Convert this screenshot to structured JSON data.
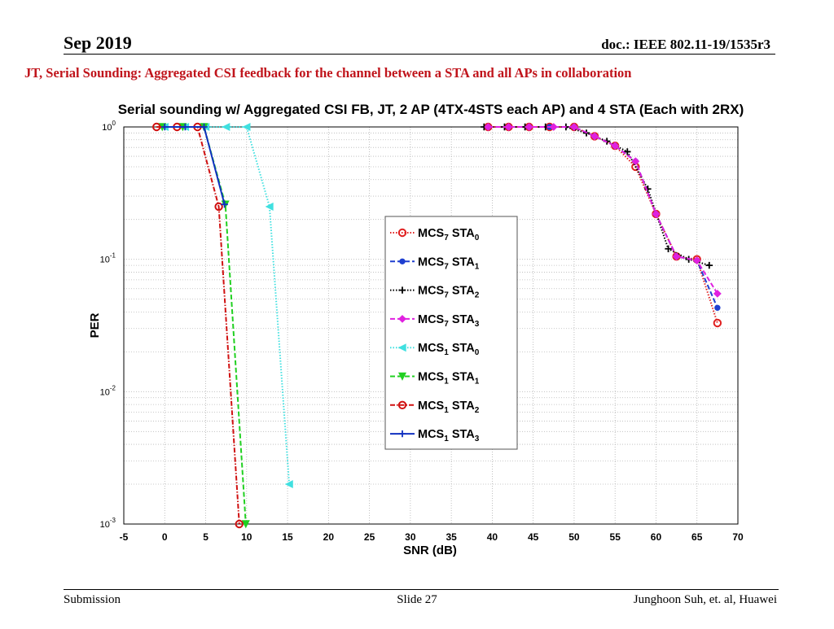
{
  "header": {
    "date": "Sep 2019",
    "doc": "doc.: IEEE 802.11-19/1535r3"
  },
  "slide_title": "JT, Serial Sounding: Aggregated CSI feedback for the channel  between a STA and all APs in collaboration",
  "footer": {
    "left": "Submission",
    "center": "Slide 27",
    "right": "Junghoon Suh, et. al, Huawei"
  },
  "chart_data": {
    "type": "line",
    "title": "Serial sounding w/ Aggregated CSI FB, JT, 2 AP (4TX-4STS each AP) and 4 STA (Each with 2RX)",
    "xlabel": "SNR (dB)",
    "ylabel": "PER",
    "xlim": [
      -5,
      70
    ],
    "ylim": [
      0.001,
      1
    ],
    "yscale": "log",
    "grid": true,
    "legend_position": "center-right",
    "x_ticks": [
      "-5",
      "0",
      "5",
      "10",
      "15",
      "20",
      "25",
      "30",
      "35",
      "40",
      "45",
      "50",
      "55",
      "60",
      "65",
      "70"
    ],
    "y_ticks": [
      {
        "base": "10",
        "exp": "0",
        "value": 1
      },
      {
        "base": "10",
        "exp": "-1",
        "value": 0.1
      },
      {
        "base": "10",
        "exp": "-2",
        "value": 0.01
      },
      {
        "base": "10",
        "exp": "-3",
        "value": 0.001
      }
    ],
    "series": [
      {
        "name": "MCS7 STA0",
        "label_main": "MCS",
        "label_sub1": "7",
        "label_mid": " STA",
        "label_sub2": "0",
        "color": "#e02020",
        "dash": "1.5,2",
        "marker": "circle",
        "x": [
          39.5,
          42,
          44.5,
          47,
          50,
          52.5,
          55,
          57.5,
          60,
          62.5,
          65,
          67.5
        ],
        "y": [
          1.0,
          1.0,
          1.0,
          1.0,
          1.0,
          0.85,
          0.72,
          0.5,
          0.22,
          0.105,
          0.1,
          0.033
        ]
      },
      {
        "name": "MCS7 STA1",
        "label_main": "MCS",
        "label_sub1": "7",
        "label_mid": " STA",
        "label_sub2": "1",
        "color": "#1f3fd0",
        "dash": "6,3",
        "marker": "dot",
        "x": [
          39.5,
          42,
          44.5,
          47,
          50,
          52.5,
          55,
          57.5,
          60,
          62.5,
          65,
          67.5
        ],
        "y": [
          1.0,
          1.0,
          1.0,
          1.0,
          1.0,
          0.85,
          0.72,
          0.55,
          0.22,
          0.105,
          0.098,
          0.043
        ]
      },
      {
        "name": "MCS7 STA2",
        "label_main": "MCS",
        "label_sub1": "7",
        "label_mid": " STA",
        "label_sub2": "2",
        "color": "#000000",
        "dash": "1.5,2",
        "marker": "plus",
        "x": [
          39,
          41.5,
          44,
          46.5,
          49,
          51.5,
          54,
          56.5,
          59,
          61.5,
          64,
          66.5
        ],
        "y": [
          1.0,
          1.0,
          1.0,
          1.0,
          1.0,
          0.9,
          0.78,
          0.65,
          0.34,
          0.12,
          0.1,
          0.09
        ]
      },
      {
        "name": "MCS7 STA3",
        "label_main": "MCS",
        "label_sub1": "7",
        "label_mid": " STA",
        "label_sub2": "3",
        "color": "#e020e0",
        "dash": "6,3",
        "marker": "diamond",
        "x": [
          39.5,
          42,
          44.5,
          47.5,
          50,
          52.5,
          55,
          57.5,
          60,
          62.5,
          65,
          67.5
        ],
        "y": [
          1.0,
          1.0,
          1.0,
          1.0,
          1.0,
          0.85,
          0.72,
          0.55,
          0.22,
          0.105,
          0.098,
          0.055
        ]
      },
      {
        "name": "MCS1 STA0",
        "label_main": "MCS",
        "label_sub1": "1",
        "label_mid": " STA",
        "label_sub2": "0",
        "color": "#40e0e0",
        "dash": "1.5,2",
        "marker": "triangle-left",
        "x": [
          0,
          2.5,
          5,
          7.5,
          10,
          12.8,
          15.2
        ],
        "y": [
          1.0,
          1.0,
          1.0,
          1.0,
          1.0,
          0.25,
          0.002
        ]
      },
      {
        "name": "MCS1 STA1",
        "label_main": "MCS",
        "label_sub1": "1",
        "label_mid": " STA",
        "label_sub2": "1",
        "color": "#20d020",
        "dash": "6,3",
        "marker": "triangle-down",
        "x": [
          -0.3,
          2.2,
          4.8,
          7.4,
          9.9
        ],
        "y": [
          1.0,
          1.0,
          1.0,
          0.26,
          0.001
        ]
      },
      {
        "name": "MCS1 STA2",
        "label_main": "MCS",
        "label_sub1": "1",
        "label_mid": " STA",
        "label_sub2": "2",
        "color": "#d01010",
        "dash": "6,2,1.5,2",
        "marker": "circle",
        "x": [
          -1,
          1.5,
          4,
          6.6,
          9.1
        ],
        "y": [
          1.0,
          1.0,
          1.0,
          0.25,
          0.001
        ]
      },
      {
        "name": "MCS1 STA3",
        "label_main": "MCS",
        "label_sub1": "1",
        "label_mid": " STA",
        "label_sub2": "3",
        "color": "#1030c0",
        "dash": "",
        "marker": "plus",
        "x": [
          0,
          2.5,
          4.8,
          7.3
        ],
        "y": [
          1.0,
          1.0,
          1.0,
          0.26
        ]
      }
    ]
  }
}
